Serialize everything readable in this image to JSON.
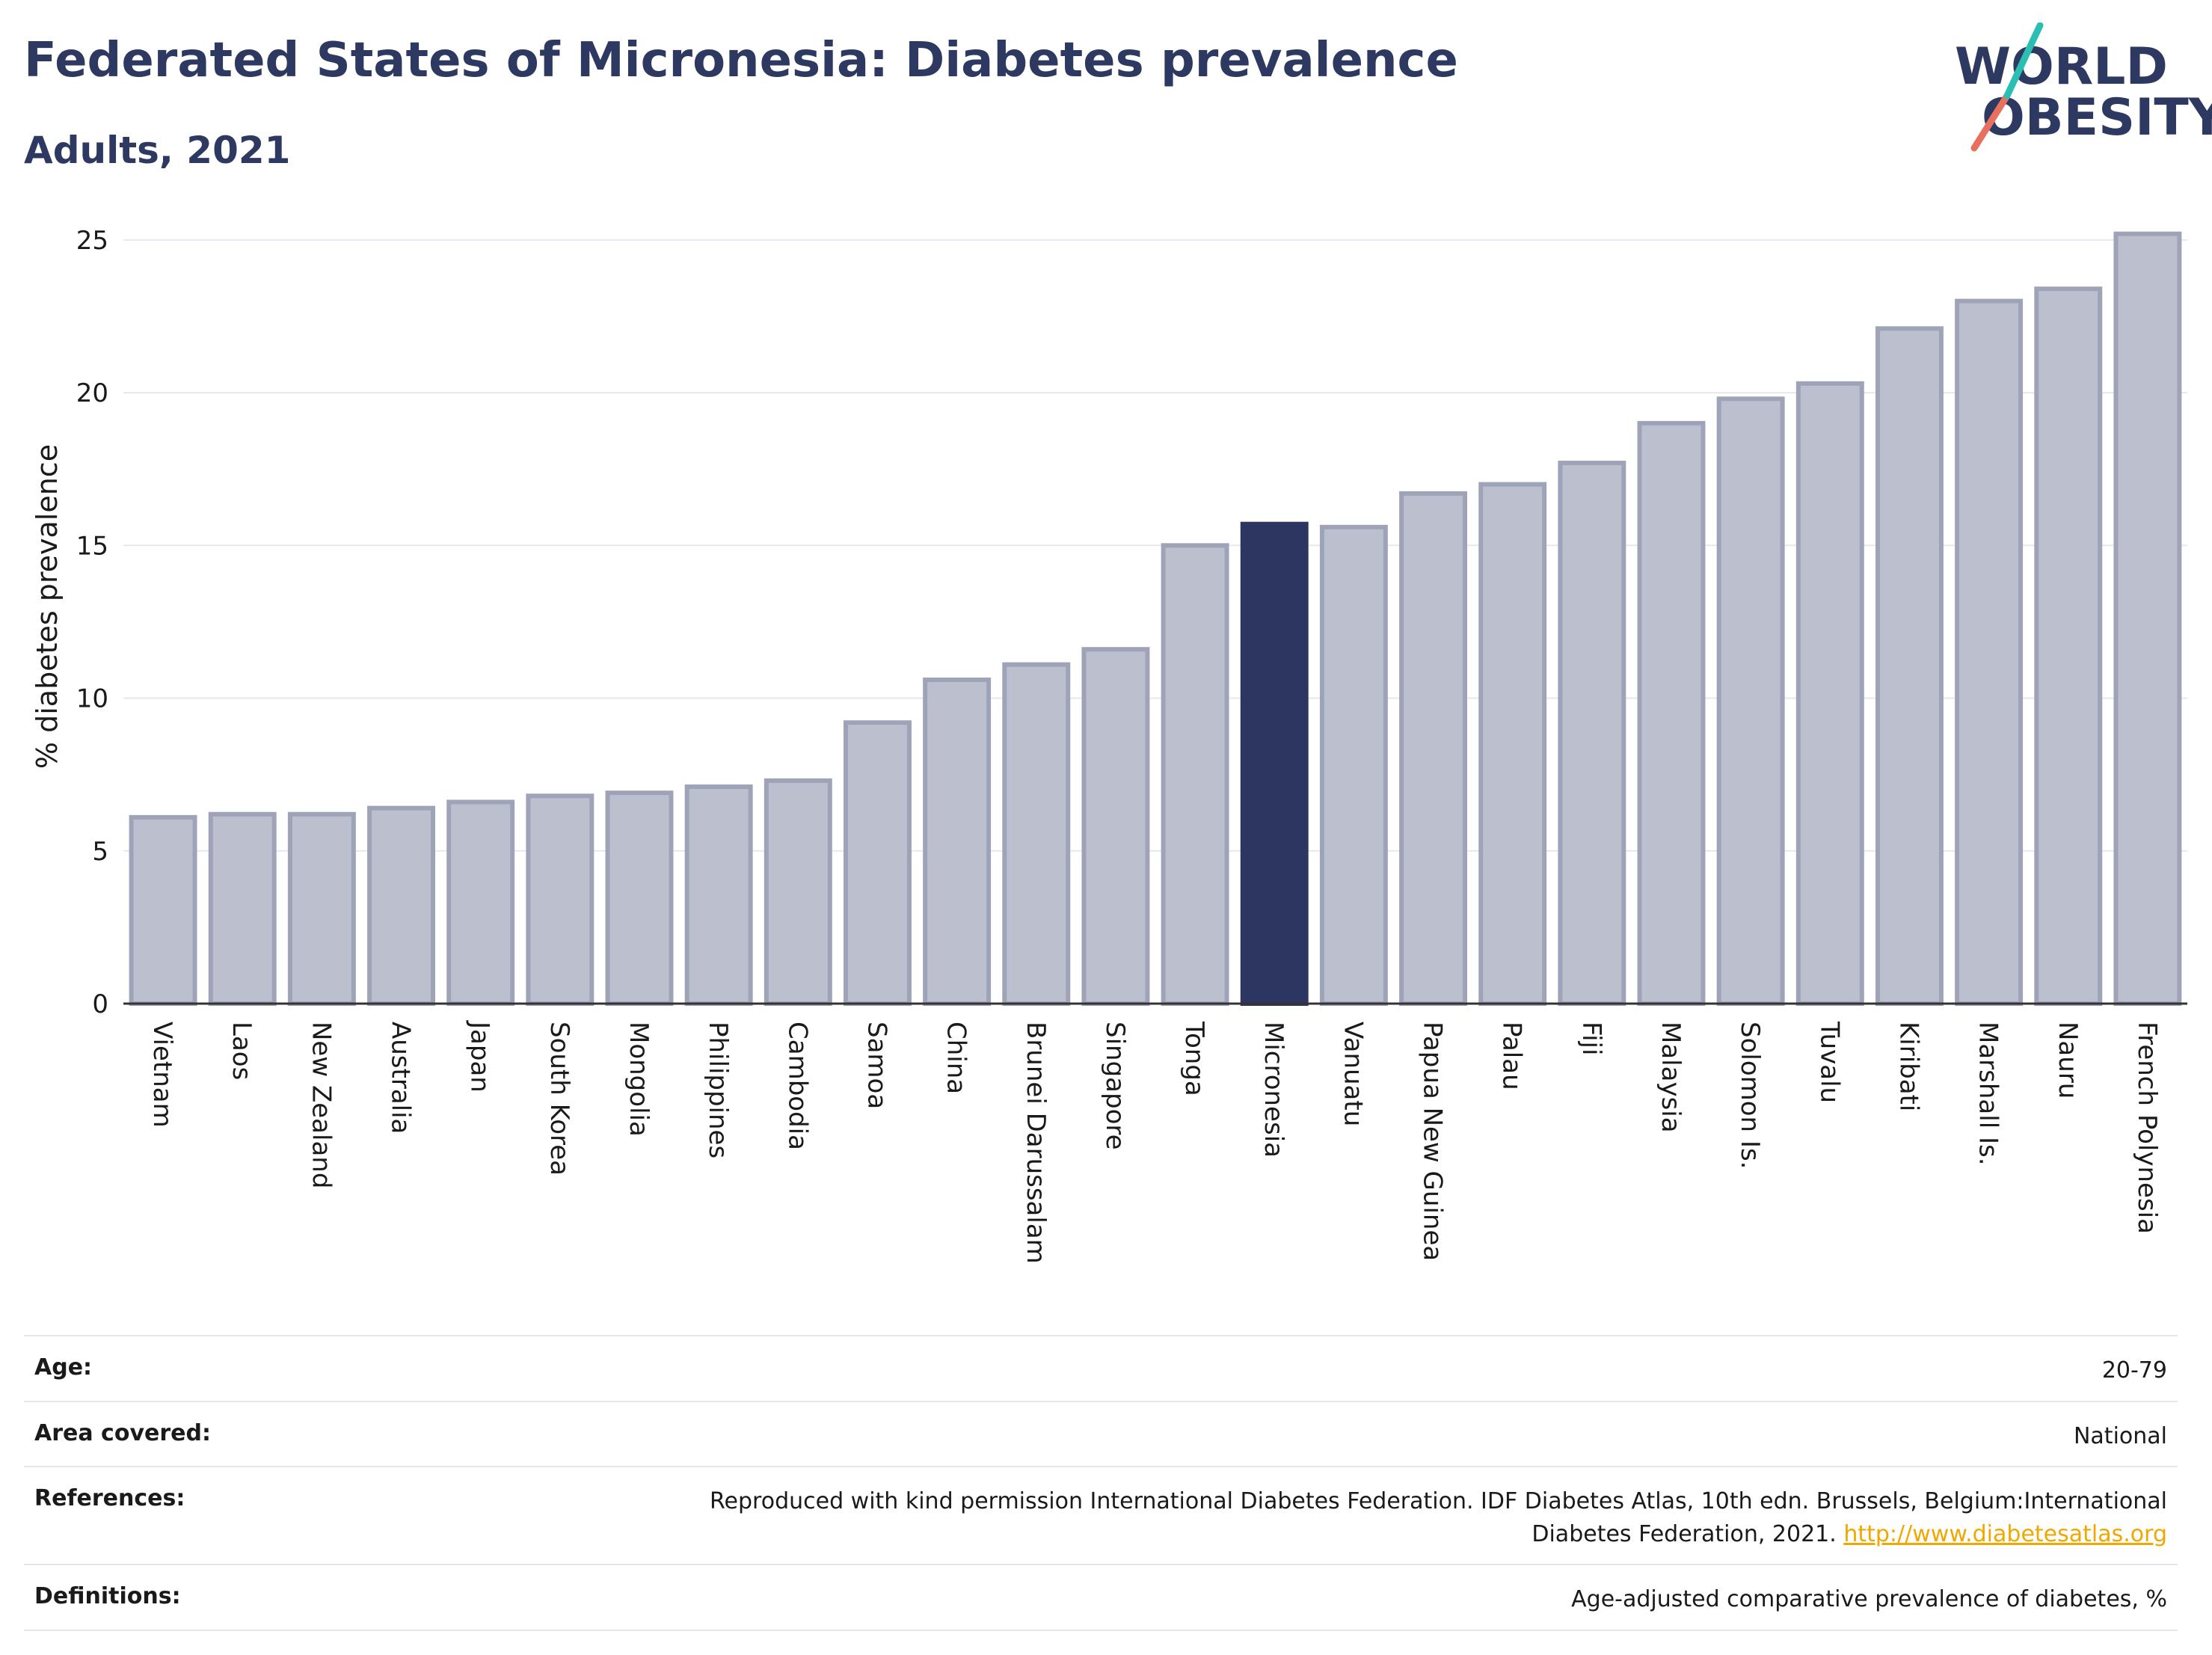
{
  "header": {
    "title": "Federated States of Micronesia: Diabetes prevalence",
    "subtitle": "Adults, 2021"
  },
  "logo": {
    "line1": "WORLD",
    "line2": "OBESITY"
  },
  "colors": {
    "highlight": "#2d3561",
    "bar": "#bcc0ce",
    "bar_border": "#9ea3b8",
    "title": "#2d3960",
    "link": "#f0a800"
  },
  "chart_data": {
    "type": "bar",
    "ylabel": "% diabetes prevalence",
    "ylim": [
      0,
      26
    ],
    "yticks": [
      0,
      5,
      10,
      15,
      20,
      25
    ],
    "grid": true,
    "highlight": "Micronesia",
    "categories": [
      "Vietnam",
      "Laos",
      "New Zealand",
      "Australia",
      "Japan",
      "South Korea",
      "Mongolia",
      "Philippines",
      "Cambodia",
      "Samoa",
      "China",
      "Brunei Darussalam",
      "Singapore",
      "Tonga",
      "Micronesia",
      "Vanuatu",
      "Papua New Guinea",
      "Palau",
      "Fiji",
      "Malaysia",
      "Solomon Is.",
      "Tuvalu",
      "Kiribati",
      "Marshall Is.",
      "Nauru",
      "French Polynesia"
    ],
    "values": [
      6.1,
      6.2,
      6.2,
      6.4,
      6.6,
      6.8,
      6.9,
      7.1,
      7.3,
      9.2,
      10.6,
      11.1,
      11.6,
      15.0,
      15.7,
      15.6,
      16.7,
      17.0,
      17.7,
      19.0,
      19.8,
      20.3,
      22.1,
      23.0,
      23.4,
      25.2
    ]
  },
  "info": {
    "age_label": "Age:",
    "age_value": "20-79",
    "area_label": "Area covered:",
    "area_value": "National",
    "references_label": "References:",
    "references_value": "Reproduced with kind permission International Diabetes Federation.  IDF Diabetes Atlas, 10th edn. Brussels, Belgium:International Diabetes Federation, 2021.",
    "references_link": "http://www.diabetesatlas.org",
    "definitions_label": "Definitions:",
    "definitions_value": "Age-adjusted comparative prevalence of diabetes, %"
  }
}
